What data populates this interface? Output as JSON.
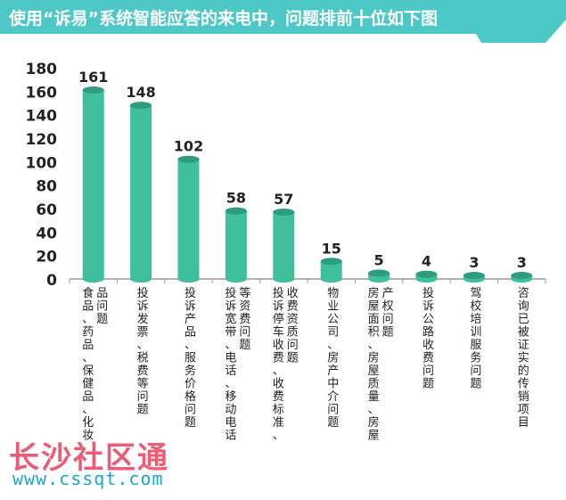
{
  "colors": {
    "banner": "#4dc8c6",
    "bar": "#3fbf9b",
    "bar_top": "#2e9c7e",
    "axis": "#999999"
  },
  "watermark": {
    "brand": "长沙社区通",
    "url": "www.cssqt.com"
  },
  "chart_data": {
    "type": "bar",
    "title": "使用“诉易”系统智能应答的来电中，问题排前十位如下图",
    "xlabel": "",
    "ylabel": "",
    "ylim": [
      0,
      180
    ],
    "yticks": [
      0,
      20,
      40,
      60,
      80,
      100,
      120,
      140,
      160,
      180
    ],
    "grid": false,
    "categories": [
      "食品、药品、保健品、化妆品问题",
      "投诉发票、税费等问题",
      "投诉产品、服务价格问题",
      "投诉宽带、电话、移动电话等资费问题",
      "投诉停车收费、收费标准、收费资质问题",
      "物业公司、房产中介问题",
      "房屋面积、房屋质量、房屋产权问题",
      "投诉公路收费问题",
      "驾校培训服务问题",
      "咨询已被证实的传销项目"
    ],
    "values": [
      161,
      148,
      102,
      58,
      57,
      15,
      5,
      4,
      3,
      3
    ]
  }
}
